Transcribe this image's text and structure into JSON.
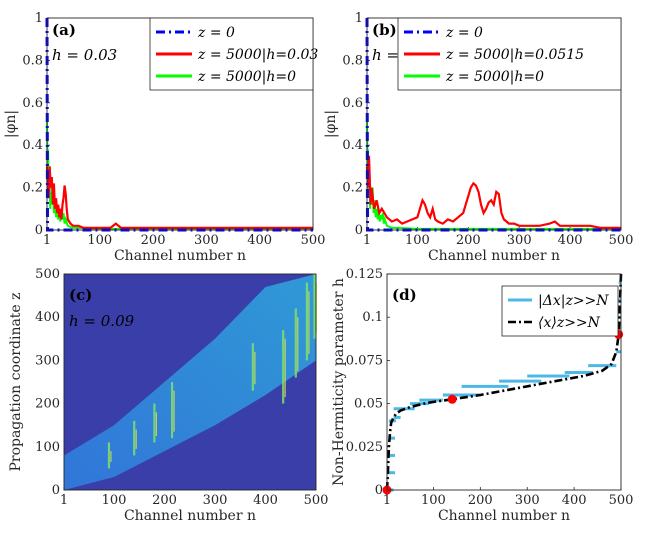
{
  "colors": {
    "blue_dashdot": "#0000ff",
    "red": "#ff0000",
    "green": "#00ff00",
    "lightblue": "#4db8e6",
    "black_dash": "#000000",
    "heat_bg": "#3a3ea8",
    "marker": "#ff0000"
  },
  "panels": {
    "a": {
      "label": "(a)",
      "h_text": "h = 0.03",
      "xlabel": "Channel number n",
      "ylabel": "|φn|",
      "xlim": [
        1,
        500
      ],
      "ylim": [
        0,
        1
      ],
      "xticks": [
        "1",
        "100",
        "200",
        "300",
        "400",
        "500"
      ],
      "yticks": [
        "0",
        "0.2",
        "0.4",
        "0.6",
        "0.8",
        "1"
      ],
      "legend": [
        "z = 0",
        "z = 5000|h=0.03",
        "z = 5000|h=0"
      ]
    },
    "b": {
      "label": "(b)",
      "h_text": "h = 0.0515",
      "xlabel": "Channel number n",
      "ylabel": "|φn|",
      "xlim": [
        1,
        500
      ],
      "ylim": [
        0,
        1
      ],
      "xticks": [
        "1",
        "100",
        "200",
        "300",
        "400",
        "500"
      ],
      "yticks": [
        "0",
        "0.2",
        "0.4",
        "0.6",
        "0.8",
        "1"
      ],
      "legend": [
        "z = 0",
        "z = 5000|h=0.0515",
        "z = 5000|h=0"
      ]
    },
    "c": {
      "label": "(c)",
      "h_text": "h = 0.09",
      "xlabel": "Channel number n",
      "ylabel": "Propagation coordinate z",
      "xlim": [
        1,
        500
      ],
      "ylim": [
        0,
        500
      ],
      "xticks": [
        "1",
        "100",
        "200",
        "300",
        "400",
        "500"
      ],
      "yticks": [
        "0",
        "100",
        "200",
        "300",
        "400",
        "500"
      ]
    },
    "d": {
      "label": "(d)",
      "xlabel": "Channel number n",
      "ylabel": "Non-Hermiticity parameter h",
      "xlim": [
        1,
        500
      ],
      "ylim": [
        0,
        0.125
      ],
      "xticks": [
        "1",
        "100",
        "200",
        "300",
        "400",
        "500"
      ],
      "yticks": [
        "0",
        "0.025",
        "0.05",
        "0.075",
        "0.1",
        "0.125"
      ],
      "legend": [
        "|Δx|z>>N",
        "⟨x⟩z>>N"
      ]
    }
  },
  "chart_data": [
    {
      "type": "line",
      "panel": "a",
      "series": [
        {
          "name": "z = 0",
          "x": [
            1,
            2,
            3,
            500
          ],
          "y": [
            1,
            0,
            0,
            0
          ]
        },
        {
          "name": "z = 5000|h=0.03",
          "x": [
            1,
            2,
            4,
            6,
            8,
            10,
            12,
            14,
            16,
            18,
            20,
            22,
            24,
            26,
            28,
            30,
            32,
            34,
            36,
            38,
            40,
            45,
            50,
            60,
            70,
            80,
            100,
            120,
            130,
            140,
            160,
            200,
            300,
            400,
            500
          ],
          "y": [
            0.3,
            0.22,
            0.15,
            0.3,
            0.2,
            0.25,
            0.12,
            0.22,
            0.1,
            0.15,
            0.08,
            0.12,
            0.06,
            0.1,
            0.05,
            0.12,
            0.15,
            0.21,
            0.17,
            0.1,
            0.05,
            0.03,
            0.02,
            0.02,
            0.01,
            0.01,
            0.01,
            0.01,
            0.03,
            0.01,
            0.01,
            0.01,
            0.01,
            0.01,
            0.01
          ]
        },
        {
          "name": "z = 5000|h=0",
          "x": [
            1,
            2,
            3,
            4,
            5,
            6,
            7,
            8,
            10,
            12,
            14,
            16,
            18,
            20,
            22,
            24,
            26,
            28,
            30,
            32,
            34,
            36,
            40,
            50,
            60,
            100,
            200,
            300,
            400,
            500
          ],
          "y": [
            0.54,
            0.3,
            0.38,
            0.18,
            0.26,
            0.22,
            0.1,
            0.18,
            0.12,
            0.2,
            0.08,
            0.14,
            0.06,
            0.1,
            0.05,
            0.08,
            0.04,
            0.07,
            0.05,
            0.08,
            0.03,
            0.05,
            0.02,
            0.01,
            0.01,
            0.005,
            0.005,
            0.005,
            0.005,
            0.005
          ]
        }
      ]
    },
    {
      "type": "line",
      "panel": "b",
      "series": [
        {
          "name": "z = 0",
          "x": [
            1,
            2,
            3,
            500
          ],
          "y": [
            1,
            0,
            0,
            0
          ]
        },
        {
          "name": "z = 5000|h=0.0515",
          "x": [
            1,
            3,
            5,
            8,
            10,
            15,
            20,
            25,
            30,
            40,
            50,
            60,
            70,
            80,
            90,
            100,
            105,
            110,
            115,
            120,
            125,
            130,
            135,
            140,
            150,
            160,
            170,
            180,
            190,
            195,
            200,
            205,
            210,
            215,
            220,
            225,
            230,
            235,
            240,
            245,
            250,
            255,
            260,
            265,
            270,
            280,
            290,
            300,
            320,
            340,
            360,
            370,
            380,
            400,
            420,
            440,
            460,
            480,
            500
          ],
          "y": [
            0.3,
            0.2,
            0.35,
            0.12,
            0.2,
            0.1,
            0.14,
            0.08,
            0.1,
            0.06,
            0.04,
            0.05,
            0.03,
            0.04,
            0.05,
            0.06,
            0.1,
            0.14,
            0.12,
            0.08,
            0.06,
            0.1,
            0.05,
            0.04,
            0.03,
            0.05,
            0.04,
            0.06,
            0.08,
            0.12,
            0.16,
            0.2,
            0.22,
            0.21,
            0.18,
            0.12,
            0.08,
            0.1,
            0.13,
            0.14,
            0.12,
            0.18,
            0.17,
            0.08,
            0.05,
            0.03,
            0.03,
            0.02,
            0.02,
            0.02,
            0.03,
            0.04,
            0.02,
            0.02,
            0.02,
            0.02,
            0.01,
            0.01,
            0.01
          ]
        },
        {
          "name": "z = 5000|h=0",
          "x": [
            1,
            2,
            3,
            4,
            5,
            6,
            7,
            8,
            10,
            12,
            14,
            16,
            18,
            20,
            22,
            24,
            26,
            28,
            30,
            32,
            34,
            36,
            40,
            50,
            60,
            100,
            200,
            300,
            400,
            500
          ],
          "y": [
            0.54,
            0.3,
            0.38,
            0.18,
            0.26,
            0.22,
            0.1,
            0.18,
            0.12,
            0.2,
            0.08,
            0.14,
            0.06,
            0.1,
            0.05,
            0.08,
            0.04,
            0.07,
            0.05,
            0.08,
            0.03,
            0.05,
            0.02,
            0.01,
            0.01,
            0.005,
            0.005,
            0.005,
            0.005,
            0.005
          ]
        }
      ]
    },
    {
      "type": "heatmap",
      "panel": "c",
      "band_lower": {
        "n": [
          1,
          100,
          200,
          250,
          300,
          400,
          500
        ],
        "z": [
          0,
          30,
          90,
          120,
          150,
          220,
          300
        ]
      },
      "band_upper": {
        "n": [
          1,
          100,
          200,
          250,
          300,
          400,
          500
        ],
        "z": [
          80,
          150,
          250,
          300,
          350,
          470,
          500
        ]
      },
      "bright_streaks": [
        {
          "n": 90,
          "z0": 50,
          "z1": 110
        },
        {
          "n": 140,
          "z0": 80,
          "z1": 160
        },
        {
          "n": 180,
          "z0": 110,
          "z1": 200
        },
        {
          "n": 215,
          "z0": 120,
          "z1": 250
        },
        {
          "n": 375,
          "z0": 230,
          "z1": 340
        },
        {
          "n": 435,
          "z0": 200,
          "z1": 370
        },
        {
          "n": 460,
          "z0": 260,
          "z1": 420
        },
        {
          "n": 482,
          "z0": 300,
          "z1": 480
        },
        {
          "n": 497,
          "z0": 350,
          "z1": 500
        }
      ]
    },
    {
      "type": "line",
      "panel": "d",
      "series": [
        {
          "name": "|Δx|z>>N",
          "segments": [
            [
              5,
              15,
              0.0
            ],
            [
              5,
              18,
              0.01
            ],
            [
              5,
              18,
              0.02
            ],
            [
              5,
              18,
              0.03
            ],
            [
              5,
              20,
              0.04
            ],
            [
              15,
              30,
              0.042
            ],
            [
              15,
              60,
              0.047
            ],
            [
              50,
              90,
              0.05
            ],
            [
              70,
              120,
              0.052
            ],
            [
              120,
              200,
              0.055
            ],
            [
              160,
              260,
              0.06
            ],
            [
              240,
              330,
              0.063
            ],
            [
              300,
              390,
              0.066
            ],
            [
              380,
              440,
              0.068
            ],
            [
              430,
              490,
              0.072
            ],
            [
              490,
              500,
              0.08
            ],
            [
              490,
              500,
              0.09
            ],
            [
              490,
              500,
              0.1
            ],
            [
              490,
              500,
              0.11
            ],
            [
              495,
              500,
              0.12
            ]
          ]
        },
        {
          "name": "⟨x⟩z>>N",
          "x": [
            1,
            3,
            5,
            8,
            10,
            15,
            20,
            30,
            50,
            80,
            100,
            140,
            200,
            260,
            320,
            380,
            420,
            460,
            480,
            490,
            495,
            498,
            500
          ],
          "y": [
            0.0,
            0.01,
            0.025,
            0.035,
            0.039,
            0.042,
            0.044,
            0.046,
            0.048,
            0.05,
            0.051,
            0.0525,
            0.055,
            0.058,
            0.061,
            0.064,
            0.066,
            0.069,
            0.073,
            0.08,
            0.09,
            0.11,
            0.125
          ]
        }
      ],
      "markers": [
        {
          "x": 1,
          "y": 0
        },
        {
          "x": 140,
          "y": 0.0525
        },
        {
          "x": 495,
          "y": 0.09
        }
      ]
    }
  ]
}
